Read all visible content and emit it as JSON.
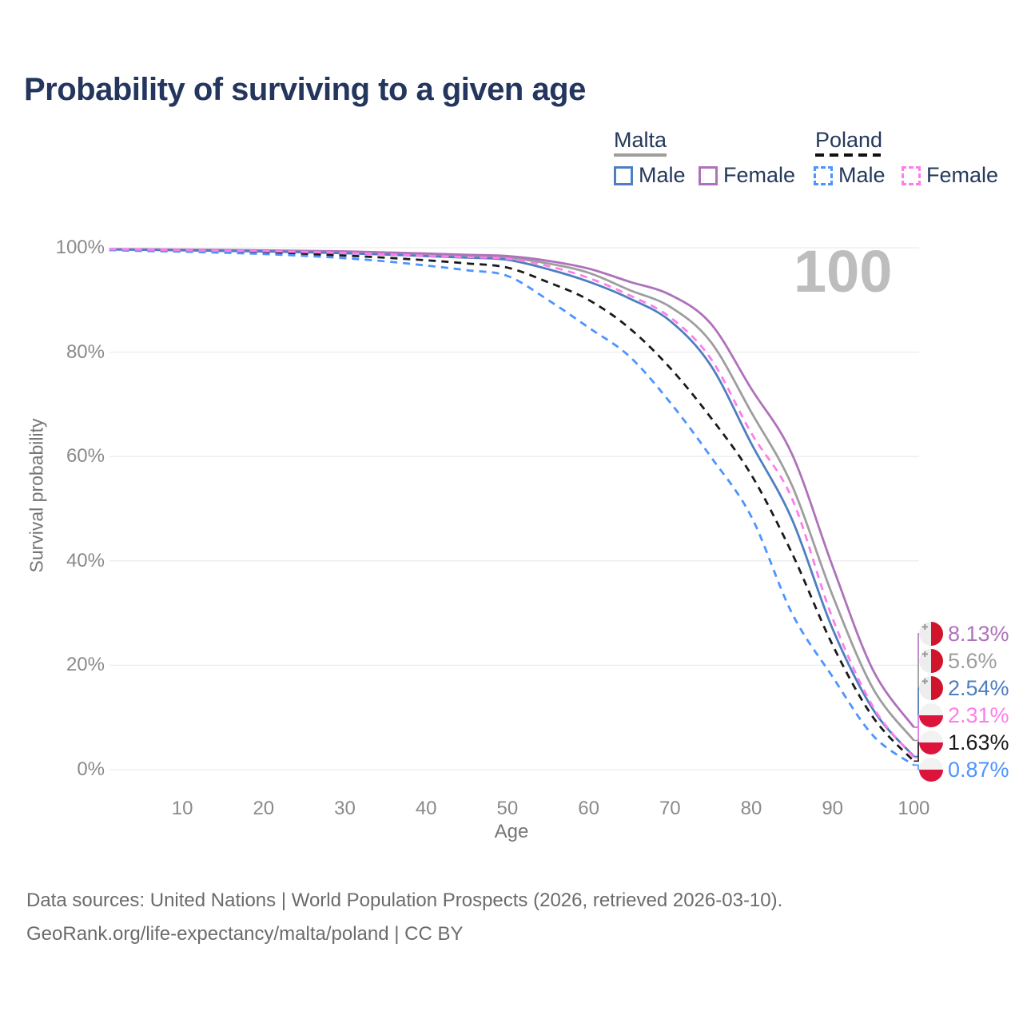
{
  "title": "Probability of surviving to a given age",
  "watermark_age": "100",
  "legend": {
    "groups": [
      {
        "label": "Malta",
        "line_style": "solid"
      },
      {
        "label": "Poland",
        "line_style": "dashed"
      }
    ],
    "items": [
      {
        "group": "Malta",
        "label": "Male",
        "color": "#4e7fc1",
        "dashed": false
      },
      {
        "group": "Malta",
        "label": "Female",
        "color": "#ae72ba",
        "dashed": false
      },
      {
        "group": "Poland",
        "label": "Male",
        "color": "#4d94ff",
        "dashed": true
      },
      {
        "group": "Poland",
        "label": "Female",
        "color": "#ff7de9",
        "dashed": true
      }
    ]
  },
  "axes": {
    "y_title": "Survival probability",
    "x_title": "Age"
  },
  "end_labels": [
    {
      "series": "malta-female",
      "value": "8.13%",
      "flag": "malta",
      "color": "#ae72ba"
    },
    {
      "series": "malta-all",
      "value": "5.6%",
      "flag": "malta",
      "color": "#9e9e9e"
    },
    {
      "series": "malta-male",
      "value": "2.54%",
      "flag": "malta",
      "color": "#4e7fc1"
    },
    {
      "series": "poland-female",
      "value": "2.31%",
      "flag": "poland",
      "color": "#ff7de9"
    },
    {
      "series": "poland-all",
      "value": "1.63%",
      "flag": "poland",
      "color": "#1a1a1a"
    },
    {
      "series": "poland-male",
      "value": "0.87%",
      "flag": "poland",
      "color": "#4d94ff"
    }
  ],
  "footer": {
    "line1": "Data sources: United Nations | World Population Prospects (2026, retrieved 2026-03-10).",
    "line2": "GeoRank.org/life-expectancy/malta/poland | CC BY"
  },
  "chart_data": {
    "type": "line",
    "title": "Probability of surviving to a given age",
    "xlabel": "Age",
    "ylabel": "Survival probability",
    "xlim": [
      0,
      100
    ],
    "ylim": [
      0,
      100
    ],
    "grid": "horizontal",
    "x_ticks": [
      10,
      20,
      30,
      40,
      50,
      60,
      70,
      80,
      90,
      100
    ],
    "y_ticks": [
      {
        "value": 0,
        "label": "0%"
      },
      {
        "value": 20,
        "label": "20%"
      },
      {
        "value": 40,
        "label": "40%"
      },
      {
        "value": 60,
        "label": "60%"
      },
      {
        "value": 80,
        "label": "80%"
      },
      {
        "value": 100,
        "label": "100%"
      }
    ],
    "ages": [
      1,
      5,
      10,
      15,
      20,
      25,
      30,
      35,
      40,
      45,
      50,
      55,
      60,
      65,
      70,
      75,
      80,
      85,
      90,
      95,
      100
    ],
    "series": [
      {
        "name": "malta-all",
        "country": "Malta",
        "sex": "All",
        "color": "#9e9e9e",
        "dashed": false,
        "values": [
          99.7,
          99.65,
          99.6,
          99.5,
          99.4,
          99.3,
          99.15,
          98.95,
          98.7,
          98.4,
          98.1,
          97.0,
          95.2,
          91.9,
          88.7,
          82.0,
          68.5,
          54.5,
          33.4,
          15.5,
          5.6
        ],
        "end_value_label": "5.6%"
      },
      {
        "name": "malta-female",
        "country": "Malta",
        "sex": "Female",
        "color": "#ae72ba",
        "dashed": false,
        "values": [
          99.75,
          99.7,
          99.65,
          99.6,
          99.5,
          99.4,
          99.3,
          99.1,
          98.9,
          98.65,
          98.4,
          97.5,
          96.0,
          93.5,
          91.0,
          85.5,
          73.0,
          60.5,
          39.0,
          19.0,
          8.13
        ],
        "end_value_label": "8.13%"
      },
      {
        "name": "malta-male",
        "country": "Malta",
        "sex": "Male",
        "color": "#4e7fc1",
        "dashed": false,
        "values": [
          99.65,
          99.6,
          99.5,
          99.4,
          99.3,
          99.15,
          98.95,
          98.7,
          98.4,
          98.1,
          97.7,
          95.9,
          93.5,
          90.3,
          86.0,
          77.5,
          62.5,
          48.0,
          27.0,
          11.5,
          2.54
        ],
        "end_value_label": "2.54%"
      },
      {
        "name": "poland-all",
        "country": "Poland",
        "sex": "All",
        "color": "#1a1a1a",
        "dashed": true,
        "values": [
          99.6,
          99.5,
          99.4,
          99.25,
          99.05,
          98.8,
          98.5,
          98.1,
          97.6,
          97.0,
          96.2,
          93.4,
          90.0,
          84.6,
          77.0,
          67.5,
          56.5,
          41.5,
          23.9,
          10.0,
          1.63
        ],
        "end_value_label": "1.63%"
      },
      {
        "name": "poland-male",
        "country": "Poland",
        "sex": "Male",
        "color": "#4d94ff",
        "dashed": true,
        "values": [
          99.55,
          99.4,
          99.25,
          99.05,
          98.8,
          98.45,
          98.0,
          97.4,
          96.6,
          95.7,
          94.6,
          90.0,
          84.7,
          79.2,
          70.4,
          60.0,
          48.5,
          30.0,
          17.8,
          6.5,
          0.87
        ],
        "end_value_label": "0.87%"
      },
      {
        "name": "poland-female",
        "country": "Poland",
        "sex": "Female",
        "color": "#ff7de9",
        "dashed": true,
        "values": [
          99.7,
          99.65,
          99.55,
          99.45,
          99.35,
          99.2,
          99.0,
          98.75,
          98.45,
          98.2,
          97.9,
          96.5,
          94.2,
          90.9,
          86.7,
          78.8,
          64.5,
          52.0,
          29.0,
          12.0,
          2.31
        ],
        "end_value_label": "2.31%"
      }
    ]
  }
}
